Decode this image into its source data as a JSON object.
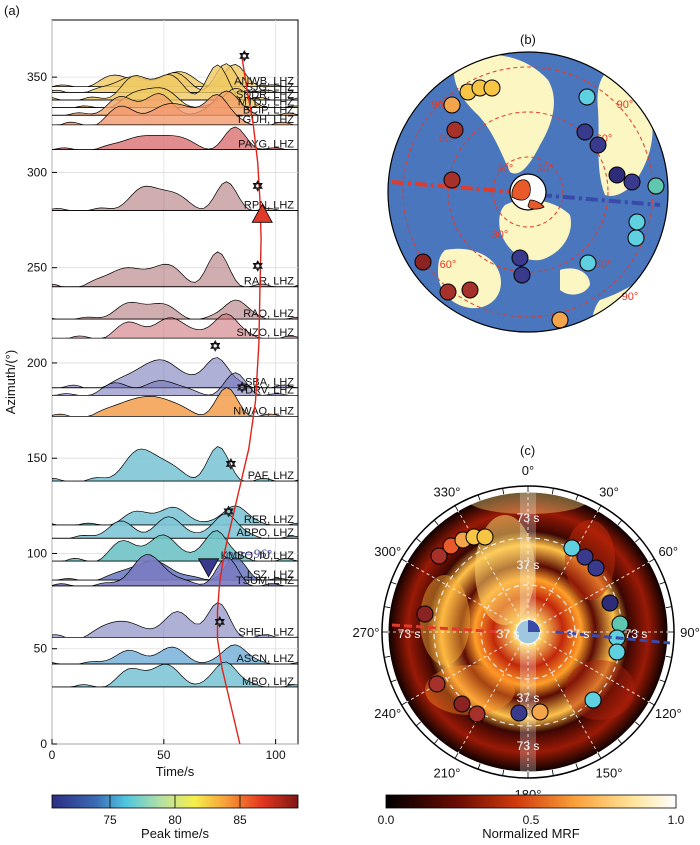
{
  "figure": {
    "panel_a": {
      "label": "(a)",
      "ylabel": "Azimuth/(°)",
      "xlabel": "Time/s",
      "phi_label": "φ_r=96°",
      "stations": [
        {
          "name": "ANWB, LHZ",
          "az": 345,
          "color": "#f0c964",
          "fill": 0.8
        },
        {
          "name": "SJG, LHZ",
          "az": 342,
          "color": "#f0c964",
          "fill": 0.8
        },
        {
          "name": "SDDR, LHZ",
          "az": 338,
          "color": "#f0c964",
          "fill": 0.8
        },
        {
          "name": "MTDJ, LHZ",
          "az": 334,
          "color": "#f0c964",
          "fill": 0.8
        },
        {
          "name": "BCIP, LHZ",
          "az": 330,
          "color": "#f2a46a",
          "fill": 0.8
        },
        {
          "name": "TGUH, LHZ",
          "az": 325,
          "color": "#f39a6c",
          "fill": 0.8
        },
        {
          "name": "PAYG, LHZ",
          "az": 312,
          "color": "#d97070",
          "fill": 0.8
        },
        {
          "name": "RPN, LHZ",
          "az": 280,
          "color": "#a96a6e",
          "fill": 0.55
        },
        {
          "name": "RAR, LHZ",
          "az": 240,
          "color": "#a96a6e",
          "fill": 0.55
        },
        {
          "name": "RAO, LHZ",
          "az": 223,
          "color": "#a96a6e",
          "fill": 0.55
        },
        {
          "name": "SNZO, LHZ",
          "az": 213,
          "color": "#c9686e",
          "fill": 0.55
        },
        {
          "name": "SBA, LHZ",
          "az": 187,
          "color": "#6e6fb5",
          "fill": 0.55
        },
        {
          "name": "DRV, LHZ",
          "az": 183,
          "color": "#6e6fb5",
          "fill": 0.55
        },
        {
          "name": "NWAO, LHZ",
          "az": 172,
          "color": "#f4a85e",
          "fill": 0.95
        },
        {
          "name": "PAF, LHZ",
          "az": 138,
          "color": "#80c6d6",
          "fill": 0.9
        },
        {
          "name": "RER, LHZ",
          "az": 115,
          "color": "#80c6d6",
          "fill": 0.9
        },
        {
          "name": "ABPO, LHZ",
          "az": 108,
          "color": "#80c6d6",
          "fill": 0.9
        },
        {
          "name": "KMBO, IU,LHZ",
          "az": 96,
          "color": "#6fc2c4",
          "fill": 0.9
        },
        {
          "name": "LSZ, LHZ",
          "az": 86,
          "color": "#6f7ec2",
          "fill": 0.9
        },
        {
          "name": "TSUM, LHZ",
          "az": 83,
          "color": "#7b7bc2",
          "fill": 0.9
        },
        {
          "name": "SHEL, LHZ",
          "az": 56,
          "color": "#6e6fb5",
          "fill": 0.55
        },
        {
          "name": "ASCN, LHZ",
          "az": 42,
          "color": "#80b6dc",
          "fill": 0.9
        },
        {
          "name": "MBO, LHZ",
          "az": 30,
          "color": "#80c6d6",
          "fill": 0.9
        }
      ],
      "peak_markers": [
        {
          "time": 86,
          "az": 361
        },
        {
          "time": 92,
          "az": 293
        },
        {
          "time": 92,
          "az": 251
        },
        {
          "time": 73,
          "az": 209
        },
        {
          "time": 85,
          "az": 187
        },
        {
          "time": 80,
          "az": 147
        },
        {
          "time": 79,
          "az": 122
        },
        {
          "time": 75,
          "az": 64
        }
      ],
      "model_curve": [
        [
          84,
          0
        ],
        [
          80,
          20
        ],
        [
          76,
          40
        ],
        [
          74,
          55
        ],
        [
          74,
          70
        ],
        [
          75,
          85
        ],
        [
          77,
          100
        ],
        [
          80,
          115
        ],
        [
          84,
          135
        ],
        [
          88,
          155
        ],
        [
          91,
          180
        ],
        [
          92.5,
          210
        ],
        [
          93,
          240
        ],
        [
          93.5,
          265
        ],
        [
          93,
          285
        ],
        [
          92,
          305
        ],
        [
          90,
          325
        ],
        [
          87,
          345
        ],
        [
          85,
          360
        ]
      ],
      "triangle_up": {
        "time": 94,
        "az": 278,
        "color": "#e23a2a"
      },
      "triangle_down": {
        "time": 70,
        "az": 93,
        "color": "#3a3a8c"
      }
    },
    "panel_b": {
      "label": "(b)",
      "rings": [
        "30°",
        "30°",
        "30°",
        "60°",
        "60°",
        "60°",
        "60°",
        "90°",
        "90°",
        "90°"
      ]
    },
    "panel_c": {
      "label": "(c)",
      "angles": [
        "0°",
        "30°",
        "60°",
        "90°",
        "120°",
        "150°",
        "180°",
        "210°",
        "240°",
        "270°",
        "300°",
        "330°"
      ],
      "radii": [
        "37 s",
        "73 s",
        "37 s",
        "73 s",
        "37 s",
        "73 s",
        "37 s",
        "73 s"
      ]
    },
    "colorbar_left": {
      "label": "Peak time/s",
      "ticks": [
        "75",
        "80",
        "85"
      ]
    },
    "colorbar_right": {
      "label": "Normalized MRF",
      "ticks": [
        "0.0",
        "0.5",
        "1.0"
      ]
    }
  },
  "chart_data": [
    {
      "type": "line",
      "title": "",
      "xlabel": "Time/s",
      "ylabel": "Azimuth/(°)",
      "xlim": [
        0,
        110
      ],
      "ylim": [
        0,
        380
      ],
      "xticks": [
        0,
        50,
        100
      ],
      "yticks": [
        0,
        50,
        100,
        150,
        200,
        250,
        300,
        350
      ],
      "series": [
        {
          "name": "stacked MRF waveforms by station azimuth",
          "values": "see figure.panel_a.stations"
        }
      ]
    },
    {
      "type": "scatter",
      "title": "",
      "description_label": "station distribution map",
      "series": [
        {
          "name": "stations",
          "values": "colored circles by peak time"
        }
      ]
    },
    {
      "type": "heatmap",
      "title": "",
      "colorbar": {
        "label": "Normalized MRF",
        "range": [
          0,
          1
        ]
      },
      "radial_max_s": 73
    }
  ]
}
